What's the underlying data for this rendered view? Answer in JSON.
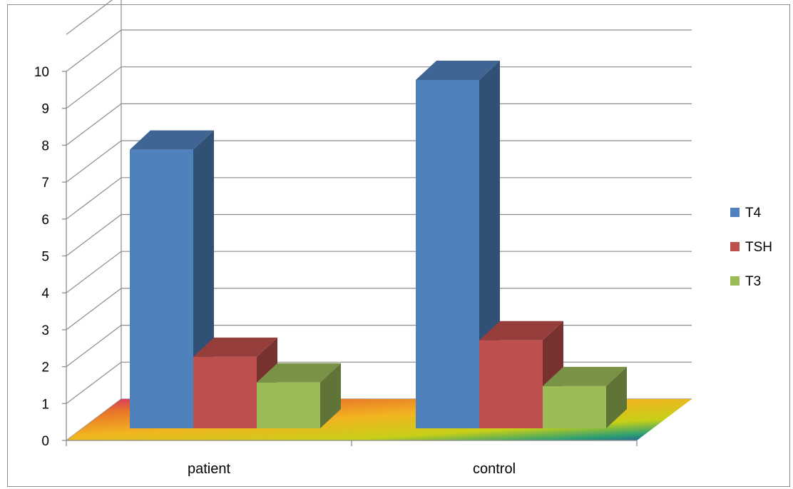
{
  "chart_data": {
    "type": "bar",
    "subtype": "3d-clustered-column",
    "title": "",
    "xlabel": "",
    "ylabel": "",
    "categories": [
      "patient",
      "control"
    ],
    "series": [
      {
        "name": "T4",
        "values": [
          7.6,
          9.5
        ],
        "color": "#4f81bd"
      },
      {
        "name": "TSH",
        "values": [
          1.95,
          2.4
        ],
        "color": "#c0504d"
      },
      {
        "name": "T3",
        "values": [
          1.25,
          1.15
        ],
        "color": "#9bbb59"
      }
    ],
    "ylim": [
      0,
      10
    ],
    "yticks": [
      "0",
      "1",
      "2",
      "3",
      "4",
      "5",
      "6",
      "7",
      "8",
      "9",
      "10"
    ],
    "grid": true,
    "legend_position": "right"
  }
}
